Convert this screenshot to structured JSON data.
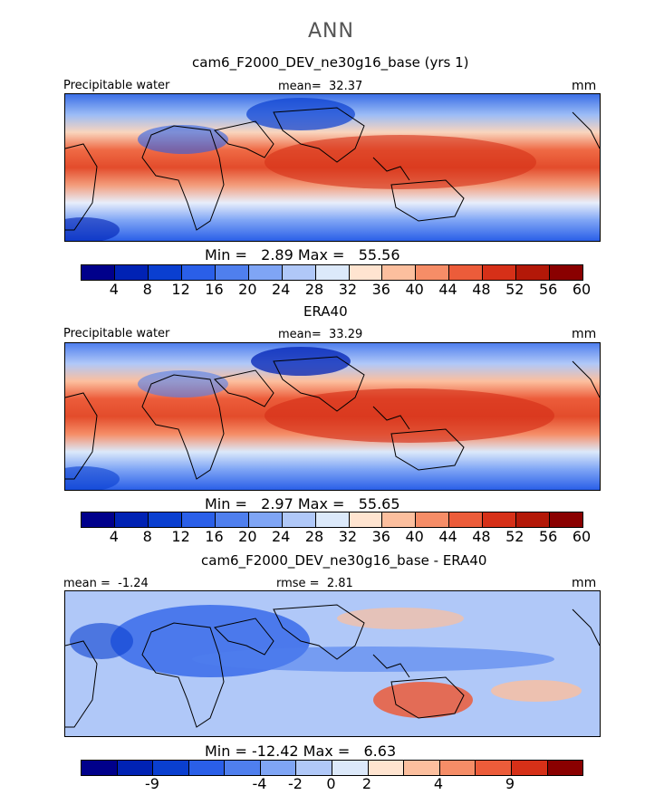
{
  "chart_data": [
    {
      "type": "heatmap",
      "season": "ANN",
      "title": "cam6_F2000_DEV_ne30g16_base (yrs 1)",
      "variable": "Precipitable water",
      "units": "mm",
      "mean_label": "mean=",
      "mean": "32.37",
      "min_label": "Min =",
      "min": "2.89",
      "max_label": "Max =",
      "max": "55.56",
      "colorbar_ticks": [
        "4",
        "8",
        "12",
        "16",
        "20",
        "24",
        "28",
        "32",
        "36",
        "40",
        "44",
        "48",
        "52",
        "56",
        "60"
      ]
    },
    {
      "type": "heatmap",
      "title": "ERA40",
      "variable": "Precipitable water",
      "units": "mm",
      "mean_label": "mean=",
      "mean": "33.29",
      "min_label": "Min =",
      "min": "2.97",
      "max_label": "Max =",
      "max": "55.65",
      "colorbar_ticks": [
        "4",
        "8",
        "12",
        "16",
        "20",
        "24",
        "28",
        "32",
        "36",
        "40",
        "44",
        "48",
        "52",
        "56",
        "60"
      ]
    },
    {
      "type": "heatmap",
      "title": "cam6_F2000_DEV_ne30g16_base - ERA40",
      "units": "mm",
      "mean_label": "mean =",
      "mean": "-1.24",
      "rmse_label": "rmse =",
      "rmse": "2.81",
      "min_label": "Min =",
      "min": "-12.42",
      "max_label": "Max =",
      "max": "6.63",
      "colorbar_ticks": [
        "-9",
        "-4",
        "-2",
        "0",
        "2",
        "4",
        "9"
      ]
    }
  ],
  "colors": {
    "abs_scale": [
      "#00008b",
      "#0022b4",
      "#0a3fd0",
      "#2a5fe8",
      "#4f7fee",
      "#7fa5f5",
      "#b0c8f8",
      "#dce9fa",
      "#ffe4d0",
      "#fcbf9e",
      "#f68d67",
      "#ec5c3a",
      "#d63018",
      "#b31808",
      "#8a0000"
    ],
    "diff_scale": [
      "#00008b",
      "#0022b4",
      "#0a3fd0",
      "#2a5fe8",
      "#4f7fee",
      "#7fa5f5",
      "#b0c8f8",
      "#dce9fa",
      "#ffe4d0",
      "#fcbf9e",
      "#f68d67",
      "#ec5c3a",
      "#d63018",
      "#8a0000"
    ]
  }
}
